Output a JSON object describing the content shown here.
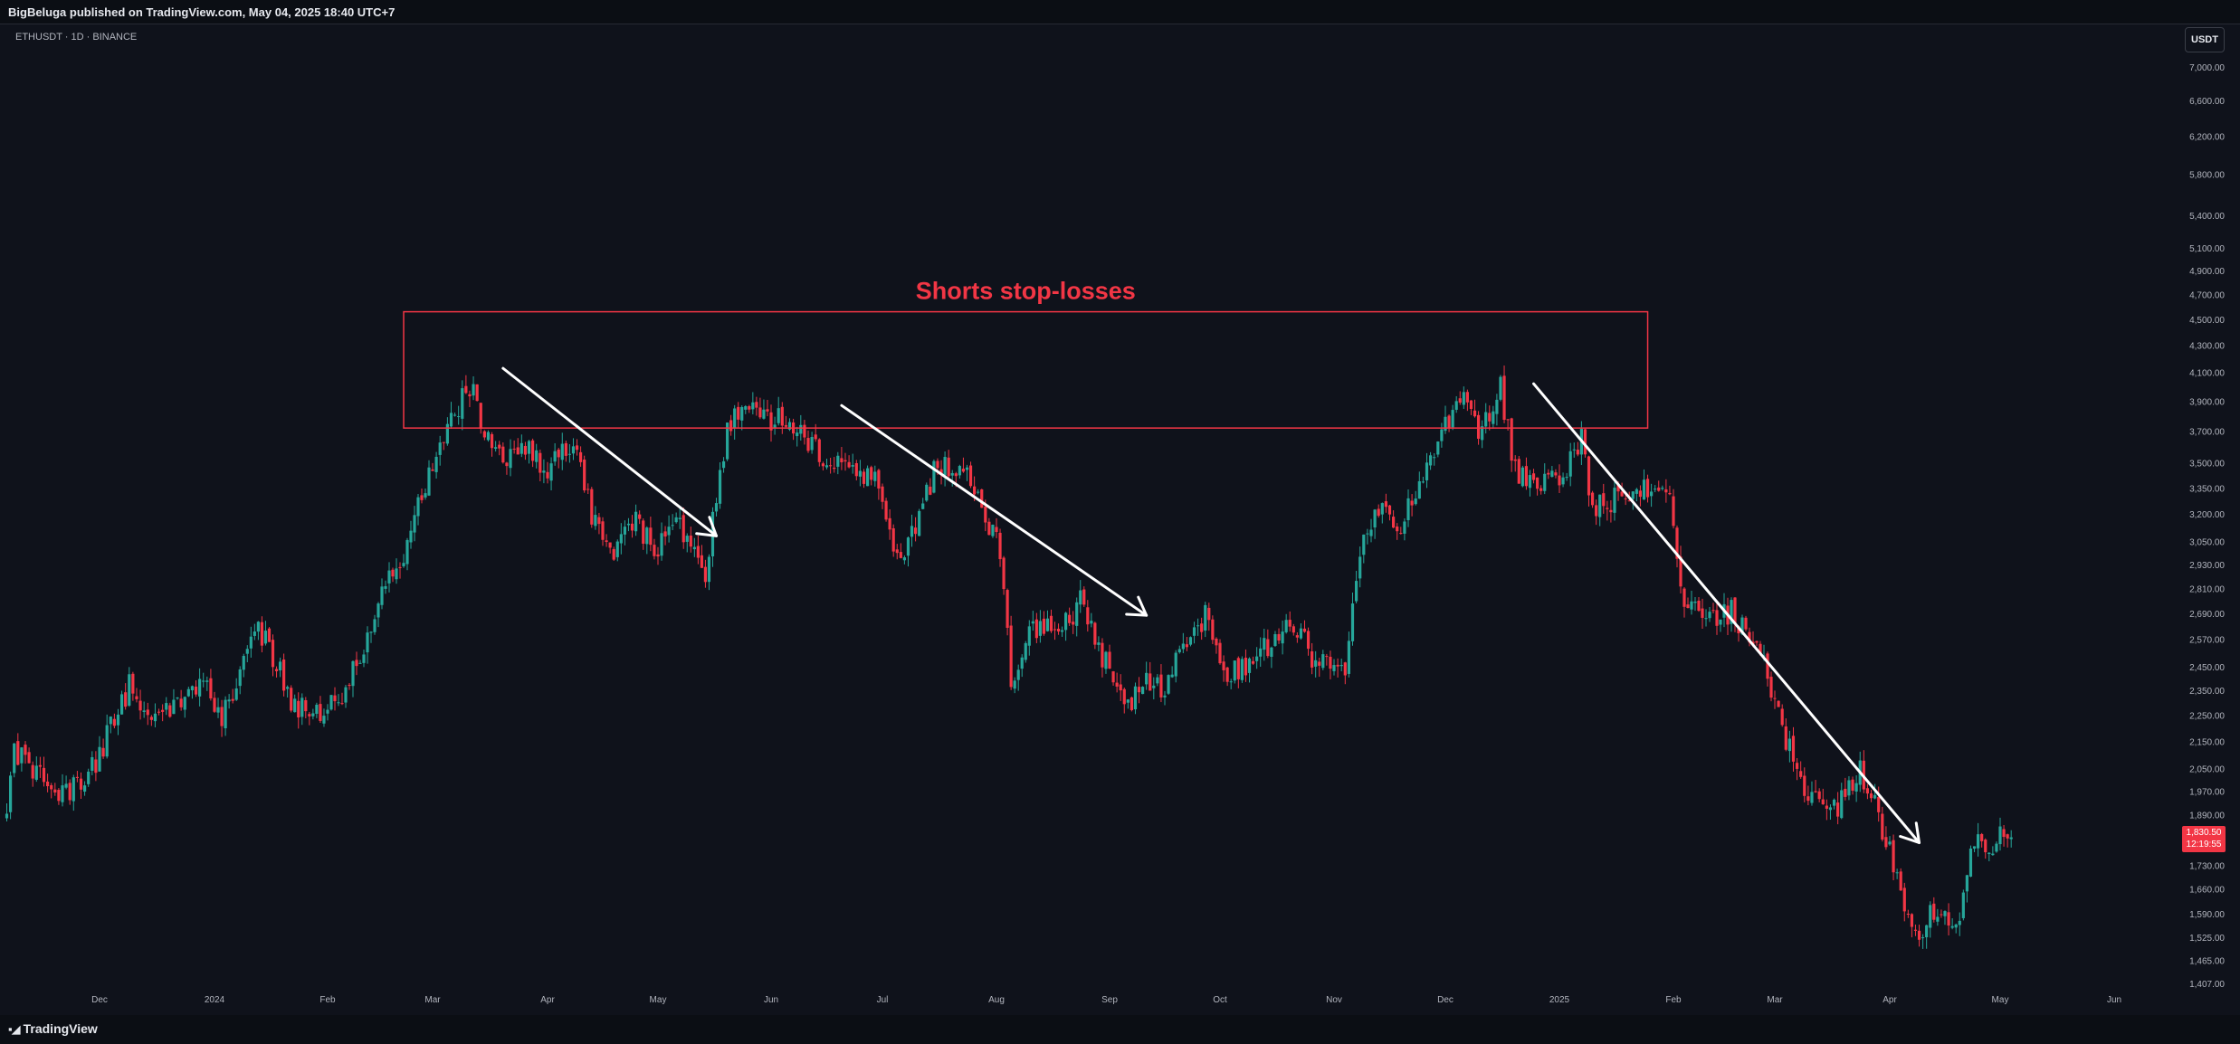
{
  "header": {
    "text": "BigBeluga published on TradingView.com, May 04, 2025 18:40 UTC+7"
  },
  "symbol": {
    "label": "ETHUSDT · 1D · BINANCE"
  },
  "currency": "USDT",
  "footer": {
    "logo": "TradingView"
  },
  "price_tag": {
    "price": "1,830.50",
    "countdown": "12:19:55"
  },
  "colors": {
    "up": "#26a69a",
    "down": "#f23645",
    "background": "#0f121b",
    "annotation_box": "#f23645",
    "arrows": "#ffffff"
  },
  "chart_data": {
    "type": "candlestick",
    "title": "",
    "y_scale": "log",
    "ylim": [
      1360,
      7350
    ],
    "y_ticks": [
      "7,000.00",
      "6,600.00",
      "6,200.00",
      "5,800.00",
      "5,400.00",
      "5,100.00",
      "4,900.00",
      "4,700.00",
      "4,500.00",
      "4,300.00",
      "4,100.00",
      "3,900.00",
      "3,700.00",
      "3,500.00",
      "3,350.00",
      "3,200.00",
      "3,050.00",
      "2,930.00",
      "2,810.00",
      "2,690.00",
      "2,570.00",
      "2,450.00",
      "2,350.00",
      "2,250.00",
      "2,150.00",
      "2,050.00",
      "1,970.00",
      "1,890.00",
      "1,810.00",
      "1,730.00",
      "1,660.00",
      "1,590.00",
      "1,525.00",
      "1,465.00",
      "1,407.00"
    ],
    "x_labels": [
      "Dec",
      "2024",
      "Feb",
      "Mar",
      "Apr",
      "May",
      "Jun",
      "Jul",
      "Aug",
      "Sep",
      "Oct",
      "Nov",
      "Dec",
      "2025",
      "Feb",
      "Mar",
      "Apr",
      "May",
      "Jun"
    ],
    "x_label_dates": [
      "2023-12-01",
      "2024-01-01",
      "2024-02-01",
      "2024-03-01",
      "2024-04-01",
      "2024-05-01",
      "2024-06-01",
      "2024-07-01",
      "2024-08-01",
      "2024-09-01",
      "2024-10-01",
      "2024-11-01",
      "2024-12-01",
      "2025-01-01",
      "2025-02-01",
      "2025-03-01",
      "2025-04-01",
      "2025-05-01",
      "2025-06-01"
    ],
    "x_range": [
      "2023-11-06",
      "2025-06-24"
    ],
    "last_price": 1830.5,
    "price_path": [
      [
        "2023-11-06",
        1880
      ],
      [
        "2023-11-08",
        2100
      ],
      [
        "2023-11-14",
        2050
      ],
      [
        "2023-11-20",
        1960
      ],
      [
        "2023-11-28",
        2020
      ],
      [
        "2023-12-04",
        2200
      ],
      [
        "2023-12-09",
        2370
      ],
      [
        "2023-12-14",
        2240
      ],
      [
        "2023-12-22",
        2310
      ],
      [
        "2023-12-28",
        2400
      ],
      [
        "2024-01-03",
        2220
      ],
      [
        "2024-01-12",
        2620
      ],
      [
        "2024-01-16",
        2540
      ],
      [
        "2024-01-22",
        2300
      ],
      [
        "2024-01-28",
        2270
      ],
      [
        "2024-02-04",
        2290
      ],
      [
        "2024-02-10",
        2500
      ],
      [
        "2024-02-16",
        2800
      ],
      [
        "2024-02-22",
        2980
      ],
      [
        "2024-02-28",
        3380
      ],
      [
        "2024-03-05",
        3760
      ],
      [
        "2024-03-12",
        4050
      ],
      [
        "2024-03-15",
        3650
      ],
      [
        "2024-03-20",
        3500
      ],
      [
        "2024-03-26",
        3600
      ],
      [
        "2024-04-01",
        3450
      ],
      [
        "2024-04-08",
        3650
      ],
      [
        "2024-04-13",
        3200
      ],
      [
        "2024-04-18",
        2980
      ],
      [
        "2024-04-25",
        3150
      ],
      [
        "2024-05-01",
        3000
      ],
      [
        "2024-05-06",
        3150
      ],
      [
        "2024-05-14",
        2900
      ],
      [
        "2024-05-20",
        3700
      ],
      [
        "2024-05-22",
        3850
      ],
      [
        "2024-05-28",
        3800
      ],
      [
        "2024-06-04",
        3770
      ],
      [
        "2024-06-10",
        3650
      ],
      [
        "2024-06-17",
        3500
      ],
      [
        "2024-06-24",
        3400
      ],
      [
        "2024-06-30",
        3420
      ],
      [
        "2024-07-05",
        2980
      ],
      [
        "2024-07-10",
        3100
      ],
      [
        "2024-07-15",
        3450
      ],
      [
        "2024-07-22",
        3480
      ],
      [
        "2024-07-28",
        3250
      ],
      [
        "2024-08-02",
        3000
      ],
      [
        "2024-08-05",
        2400
      ],
      [
        "2024-08-10",
        2600
      ],
      [
        "2024-08-20",
        2640
      ],
      [
        "2024-08-24",
        2750
      ],
      [
        "2024-08-30",
        2500
      ],
      [
        "2024-09-06",
        2300
      ],
      [
        "2024-09-10",
        2380
      ],
      [
        "2024-09-16",
        2350
      ],
      [
        "2024-09-20",
        2520
      ],
      [
        "2024-09-27",
        2680
      ],
      [
        "2024-10-02",
        2420
      ],
      [
        "2024-10-08",
        2450
      ],
      [
        "2024-10-14",
        2550
      ],
      [
        "2024-10-20",
        2650
      ],
      [
        "2024-10-26",
        2500
      ],
      [
        "2024-11-04",
        2400
      ],
      [
        "2024-11-07",
        2900
      ],
      [
        "2024-11-12",
        3250
      ],
      [
        "2024-11-18",
        3100
      ],
      [
        "2024-11-24",
        3350
      ],
      [
        "2024-11-30",
        3700
      ],
      [
        "2024-12-06",
        3950
      ],
      [
        "2024-12-10",
        3650
      ],
      [
        "2024-12-16",
        4000
      ],
      [
        "2024-12-20",
        3450
      ],
      [
        "2024-12-26",
        3350
      ],
      [
        "2025-01-02",
        3450
      ],
      [
        "2025-01-07",
        3650
      ],
      [
        "2025-01-10",
        3250
      ],
      [
        "2025-01-18",
        3300
      ],
      [
        "2025-01-24",
        3350
      ],
      [
        "2025-01-31",
        3300
      ],
      [
        "2025-02-03",
        2800
      ],
      [
        "2025-02-10",
        2650
      ],
      [
        "2025-02-17",
        2700
      ],
      [
        "2025-02-24",
        2550
      ],
      [
        "2025-03-03",
        2200
      ],
      [
        "2025-03-10",
        1950
      ],
      [
        "2025-03-17",
        1900
      ],
      [
        "2025-03-24",
        2050
      ],
      [
        "2025-03-31",
        1820
      ],
      [
        "2025-04-07",
        1550
      ],
      [
        "2025-04-09",
        1550
      ],
      [
        "2025-04-14",
        1600
      ],
      [
        "2025-04-20",
        1580
      ],
      [
        "2025-04-23",
        1780
      ],
      [
        "2025-04-28",
        1800
      ],
      [
        "2025-05-04",
        1830
      ]
    ],
    "annotations": {
      "zone": {
        "label": "Shorts stop-losses",
        "from": "2024-02-22",
        "to": "2025-01-25",
        "low": 3720,
        "high": 4560
      },
      "arrows": [
        {
          "from": [
            "2024-03-20",
            4130
          ],
          "to": [
            "2024-05-17",
            3080
          ]
        },
        {
          "from": [
            "2024-06-20",
            3870
          ],
          "to": [
            "2024-09-11",
            2680
          ]
        },
        {
          "from": [
            "2024-12-25",
            4020
          ],
          "to": [
            "2025-04-09",
            1800
          ]
        }
      ]
    }
  }
}
